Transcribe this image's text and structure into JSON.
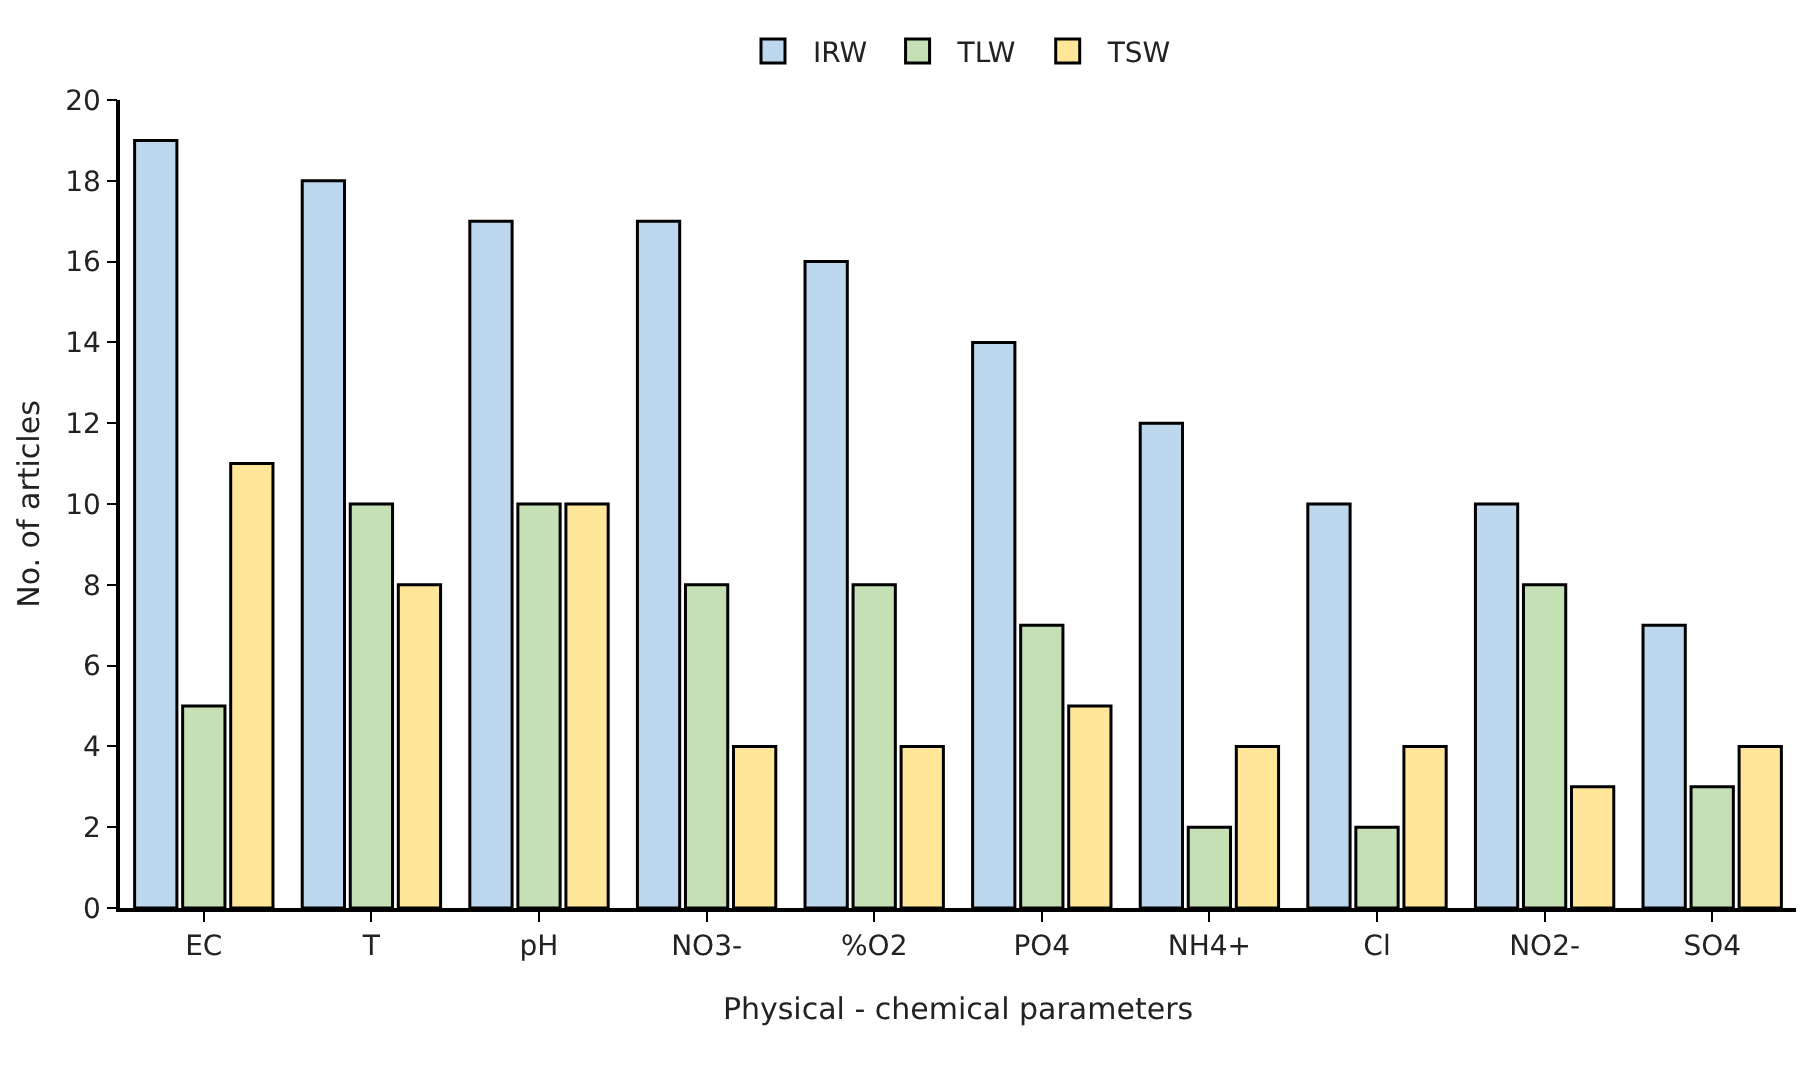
{
  "chart_data": {
    "type": "bar",
    "xlabel": "Physical - chemical parameters",
    "ylabel": "No. of articles",
    "categories": [
      "EC",
      "T",
      "pH",
      "NO3-",
      "%O2",
      "PO4",
      "NH4+",
      "Cl",
      "NO2-",
      "SO4"
    ],
    "series": [
      {
        "name": "IRW",
        "color": "#bdd7ee",
        "values": [
          19,
          18,
          17,
          17,
          16,
          14,
          12,
          10,
          10,
          7
        ]
      },
      {
        "name": "TLW",
        "color": "#c5e0b4",
        "values": [
          5,
          10,
          10,
          8,
          8,
          7,
          2,
          2,
          8,
          3
        ]
      },
      {
        "name": "TSW",
        "color": "#ffe699",
        "values": [
          11,
          8,
          10,
          4,
          4,
          5,
          4,
          4,
          3,
          4
        ]
      }
    ],
    "ylim": [
      0,
      20
    ],
    "yticks": [
      0,
      2,
      4,
      6,
      8,
      10,
      12,
      14,
      16,
      18,
      20
    ],
    "grid": false,
    "legend": "top"
  }
}
